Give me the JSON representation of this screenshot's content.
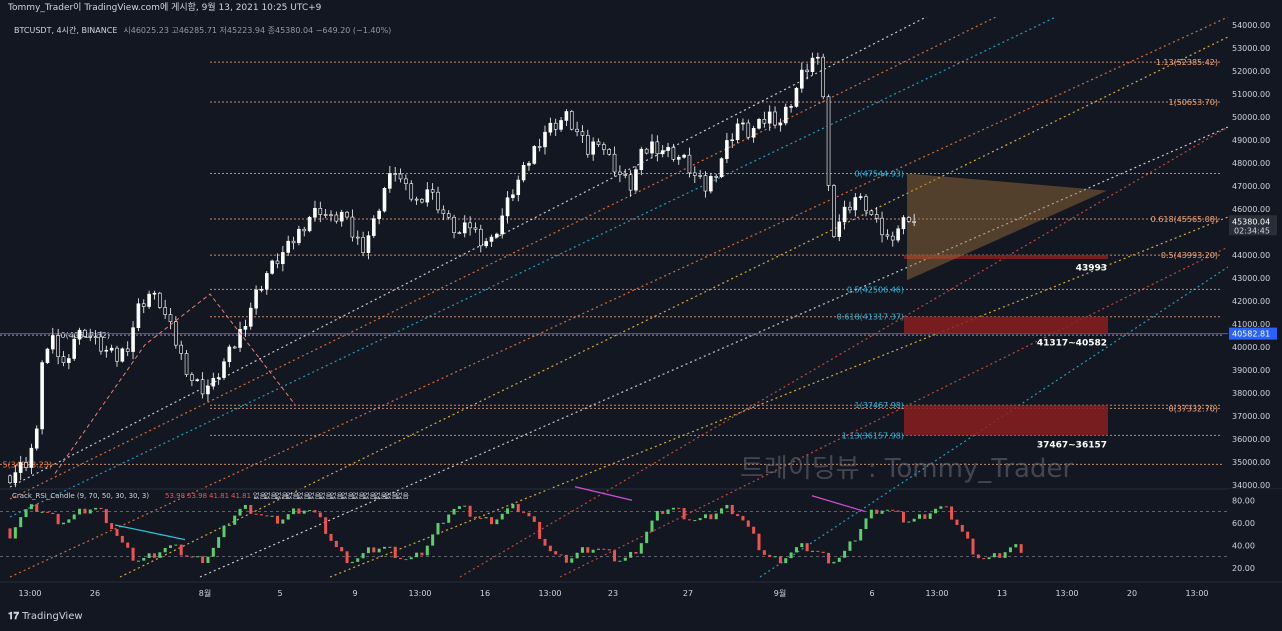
{
  "header": {
    "publisher": "Tommy_Trader이 TradingView.com에 게시함, 9월 13, 2021 10:25 UTC+9"
  },
  "legend": {
    "symbol": "BTCUSDT, 4시간, BINANCE",
    "ohlc": "시46025.23 고46285.71 저45223.94 종45380.04 −649.20 (−1.40%)"
  },
  "indicator": {
    "legend": "Crack_RSI_Candle (9, 70, 50, 30, 30, 3)",
    "values": [
      "53.98",
      "53.98",
      "41.81",
      "41.81",
      "없음",
      "없음",
      "없음",
      "없음",
      "없음",
      "없음",
      "없음",
      "없음",
      "없음",
      "없음",
      "없음",
      "없음",
      "없음",
      "없음"
    ],
    "axis_ticks": [
      "80.00",
      "60.00",
      "40.00",
      "20.00"
    ]
  },
  "watermark": "트레이딩뷰 : Tommy_Trader",
  "footer_logo": "TradingView",
  "colors": {
    "background": "#131722",
    "candle": "#ffffff",
    "white_channel": "#e8e8e8",
    "orange_channel": "#f57c3a",
    "blue_channel": "#2ab4d6",
    "red_channel": "#e0533d",
    "yellow_channel": "#f5c542",
    "fib_line": "#f5a57a",
    "zone": "#8b1f1f",
    "triangle": "#a0703a",
    "price_line": "#2962ff",
    "rsi_up": "#5ccf6c",
    "rsi_down": "#ef5350"
  },
  "chart_data": {
    "type": "candlestick",
    "symbol": "BTCUSDT",
    "timeframe": "4시간",
    "exchange": "BINANCE",
    "ylim": [
      34000,
      54000
    ],
    "y_ticks": [
      "54000.00",
      "53000.00",
      "52000.00",
      "51000.00",
      "50000.00",
      "49000.00",
      "48000.00",
      "47000.00",
      "46000.00",
      "45000.00",
      "44000.00",
      "43000.00",
      "42000.00",
      "41000.00",
      "40000.00",
      "39000.00",
      "38000.00",
      "37000.00",
      "36000.00",
      "35000.00",
      "34000.00"
    ],
    "x_ticks": [
      "13:00",
      "26",
      "8월",
      "5",
      "9",
      "13:00",
      "16",
      "13:00",
      "23",
      "27",
      "9월",
      "6",
      "13:00",
      "13",
      "13:00",
      "20",
      "13:00"
    ],
    "price_label": "40582.81",
    "current_price_label": "45380.04",
    "countdown_label": "02:34:45",
    "close_path": [
      [
        0,
        34400
      ],
      [
        3,
        35000
      ],
      [
        5,
        36200
      ],
      [
        6,
        39500
      ],
      [
        8,
        40200
      ],
      [
        10,
        39200
      ],
      [
        12,
        40400
      ],
      [
        14,
        40700
      ],
      [
        16,
        40200
      ],
      [
        18,
        39800
      ],
      [
        20,
        39500
      ],
      [
        22,
        40100
      ],
      [
        24,
        41700
      ],
      [
        26,
        42300
      ],
      [
        28,
        41900
      ],
      [
        30,
        40800
      ],
      [
        32,
        39600
      ],
      [
        34,
        38600
      ],
      [
        36,
        38200
      ],
      [
        38,
        38400
      ],
      [
        40,
        39300
      ],
      [
        42,
        40100
      ],
      [
        44,
        41200
      ],
      [
        46,
        42300
      ],
      [
        48,
        43200
      ],
      [
        50,
        43800
      ],
      [
        52,
        44300
      ],
      [
        54,
        45000
      ],
      [
        56,
        45700
      ],
      [
        58,
        46000
      ],
      [
        60,
        45500
      ],
      [
        62,
        45800
      ],
      [
        64,
        44900
      ],
      [
        66,
        44400
      ],
      [
        68,
        45400
      ],
      [
        70,
        46900
      ],
      [
        72,
        47700
      ],
      [
        74,
        46800
      ],
      [
        76,
        46300
      ],
      [
        78,
        46900
      ],
      [
        80,
        46200
      ],
      [
        82,
        45400
      ],
      [
        84,
        44900
      ],
      [
        86,
        45300
      ],
      [
        88,
        44700
      ],
      [
        90,
        44600
      ],
      [
        92,
        45700
      ],
      [
        94,
        46800
      ],
      [
        96,
        47600
      ],
      [
        98,
        48600
      ],
      [
        100,
        49400
      ],
      [
        102,
        49700
      ],
      [
        104,
        50000
      ],
      [
        106,
        49300
      ],
      [
        108,
        48500
      ],
      [
        110,
        49100
      ],
      [
        112,
        48200
      ],
      [
        114,
        47500
      ],
      [
        116,
        47000
      ],
      [
        118,
        48300
      ],
      [
        120,
        48800
      ],
      [
        122,
        48600
      ],
      [
        124,
        48400
      ],
      [
        126,
        48100
      ],
      [
        128,
        47400
      ],
      [
        130,
        46900
      ],
      [
        132,
        47700
      ],
      [
        134,
        48800
      ],
      [
        136,
        49700
      ],
      [
        138,
        49300
      ],
      [
        140,
        49600
      ],
      [
        142,
        50100
      ],
      [
        144,
        49800
      ],
      [
        146,
        50700
      ],
      [
        148,
        51800
      ],
      [
        150,
        52500
      ],
      [
        151,
        52300
      ],
      [
        152,
        51000
      ],
      [
        153,
        46900
      ],
      [
        154,
        45100
      ],
      [
        156,
        45900
      ],
      [
        158,
        46500
      ],
      [
        160,
        46100
      ],
      [
        162,
        45300
      ],
      [
        164,
        44700
      ],
      [
        166,
        45200
      ],
      [
        168,
        45700
      ],
      [
        170,
        45200
      ]
    ],
    "fib_levels": [
      {
        "label": "1.13(52385.42)",
        "value": 52385.42
      },
      {
        "label": "1(50653.70)",
        "value": 50653.7
      },
      {
        "label": "0(47544.93)",
        "value": 47544.93
      },
      {
        "label": "0.618(45565.08)",
        "value": 45565.08
      },
      {
        "label": "0.5(43993.20)",
        "value": 43993.2
      },
      {
        "label": "0.5(42506.46)",
        "value": 42506.46
      },
      {
        "label": "0.618(41317.37)",
        "value": 41317.37
      },
      {
        "label": "0(40517.32)",
        "value": 40517.32
      },
      {
        "label": "1(37467.98)",
        "value": 37467.98
      },
      {
        "label": "0(37332.70)",
        "value": 37332.7
      },
      {
        "label": "1.13(36157.98)",
        "value": 36157.98
      },
      {
        "label": "5(34898.23)",
        "value": 34898.23
      }
    ],
    "zones": [
      {
        "label": "43993",
        "top": 44000,
        "bottom": 43850
      },
      {
        "label": "41317~40582",
        "top": 41317,
        "bottom": 40582
      },
      {
        "label": "37467~36157",
        "top": 37467,
        "bottom": 36157
      }
    ],
    "indicator_ylim": [
      10,
      90
    ]
  }
}
